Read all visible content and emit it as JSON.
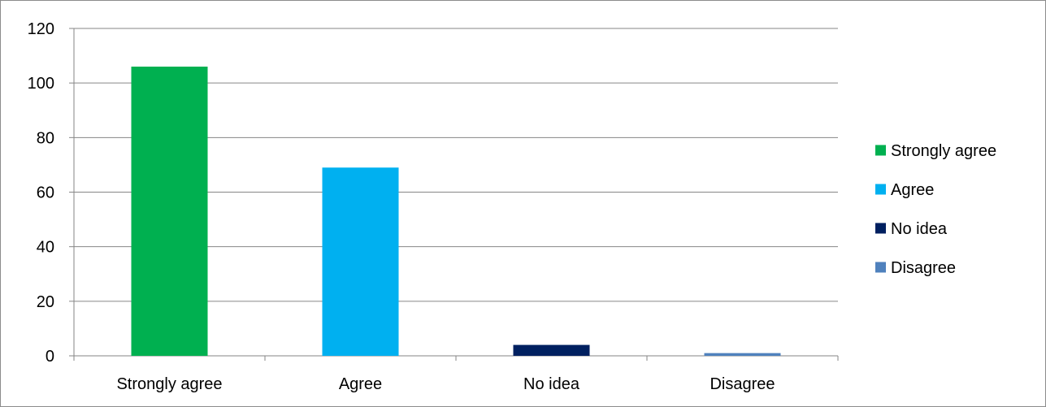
{
  "chart_data": {
    "type": "bar",
    "categories": [
      "Strongly agree",
      "Agree",
      "No idea",
      "Disagree"
    ],
    "values": [
      106,
      69,
      4,
      1
    ],
    "colors": [
      "#00b050",
      "#00b0f0",
      "#002060",
      "#4f81bd"
    ],
    "title": "",
    "xlabel": "",
    "ylabel": "",
    "ylim": [
      0,
      120
    ],
    "yticks": [
      0,
      20,
      40,
      60,
      80,
      100,
      120
    ],
    "grid": true,
    "legend": {
      "position": "right",
      "entries": [
        "Strongly agree",
        "Agree",
        "No idea",
        "Disagree"
      ]
    }
  }
}
